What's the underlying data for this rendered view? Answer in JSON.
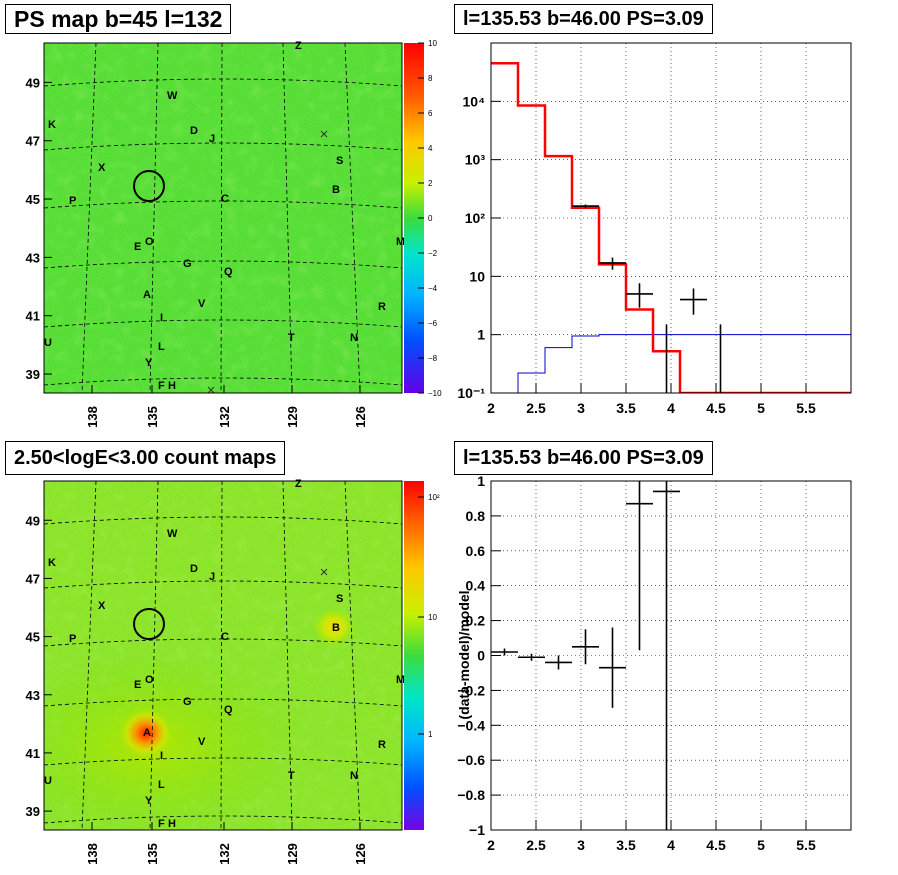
{
  "panels": {
    "ps_map_title": "PS map b=45 l=132",
    "count_map_title": "2.50<logE<3.00 count maps",
    "spectrum_title": "l=135.53 b=46.00 PS=3.09",
    "residual_title": "l=135.53 b=46.00 PS=3.09"
  },
  "colors": {
    "model_line": "#ff0000",
    "background_line": "#0000cc",
    "data_points": "#000000"
  },
  "chart_data": [
    {
      "type": "heatmap",
      "name": "ps_map",
      "title": "PS map b=45 l=132",
      "x_ticks": [
        "138",
        "135",
        "132",
        "129",
        "126"
      ],
      "y_ticks": [
        "49",
        "47",
        "45",
        "43",
        "41",
        "39"
      ],
      "colorbar_ticks": [
        "10",
        "8",
        "6",
        "4",
        "2",
        "0",
        "−2",
        "−4",
        "−6",
        "−8",
        "−10"
      ],
      "colorbar_range": [
        -10,
        10
      ],
      "source_labels": [
        "Z",
        "W",
        "K",
        "D",
        "J",
        "X",
        "S",
        "B",
        "P",
        "C",
        "E",
        "O",
        "M",
        "G",
        "Q",
        "A",
        "V",
        "R",
        "I",
        "T",
        "N",
        "U",
        "L",
        "Y",
        "F",
        "H"
      ],
      "markers": [
        "x",
        "x"
      ],
      "grid": true
    },
    {
      "type": "heatmap",
      "name": "count_map",
      "title": "2.50<logE<3.00 count maps",
      "x_ticks": [
        "138",
        "135",
        "132",
        "129",
        "126"
      ],
      "y_ticks": [
        "49",
        "47",
        "45",
        "43",
        "41",
        "39"
      ],
      "colorbar_ticks": [
        "10²",
        "10",
        "1"
      ],
      "colorbar_scale": "log",
      "source_labels": [
        "Z",
        "W",
        "K",
        "D",
        "J",
        "X",
        "S",
        "B",
        "P",
        "C",
        "E",
        "O",
        "M",
        "G",
        "Q",
        "A",
        "V",
        "R",
        "I",
        "T",
        "N",
        "U",
        "L",
        "Y",
        "F",
        "H"
      ],
      "markers": [
        "x"
      ],
      "grid": true
    },
    {
      "type": "line",
      "name": "spectrum",
      "title": "l=135.53 b=46.00 PS=3.09",
      "xlim": [
        2,
        6
      ],
      "ylim": [
        0.1,
        100000
      ],
      "yscale": "log",
      "x_ticks": [
        "2",
        "2.5",
        "3",
        "3.5",
        "4",
        "4.5",
        "5",
        "5.5"
      ],
      "y_ticks": [
        "10⁻¹",
        "1",
        "10",
        "10²",
        "10³",
        "10⁴"
      ],
      "grid": true,
      "model_steps": {
        "edges": [
          2.0,
          2.3,
          2.6,
          2.9,
          3.2,
          3.5,
          3.8,
          4.1,
          4.4,
          6.0
        ],
        "values": [
          45000,
          8500,
          1150,
          150,
          16,
          2.7,
          0.52,
          0.07,
          0.1
        ]
      },
      "background_steps": {
        "edges": [
          2.0,
          2.3,
          2.6,
          2.9,
          3.2,
          3.5,
          3.8,
          4.1,
          4.4,
          6.0
        ],
        "values": [
          0.08,
          0.22,
          0.6,
          0.95,
          1.0,
          1.0,
          1.0,
          1.0,
          1.0
        ]
      },
      "points": [
        {
          "x": 3.05,
          "y": 160,
          "xerr": 0.15,
          "ylo": 150,
          "yhi": 170
        },
        {
          "x": 3.35,
          "y": 17,
          "xerr": 0.15,
          "ylo": 13,
          "yhi": 21
        },
        {
          "x": 3.65,
          "y": 5,
          "xerr": 0.15,
          "ylo": 2.9,
          "yhi": 7.6
        },
        {
          "x": 3.95,
          "y": 0.1,
          "xerr": 0.0,
          "ylo": 0.1,
          "yhi": 1.5
        },
        {
          "x": 4.25,
          "y": 4,
          "xerr": 0.15,
          "ylo": 2.2,
          "yhi": 6.2
        },
        {
          "x": 4.55,
          "y": 0.1,
          "xerr": 0.0,
          "ylo": 0.1,
          "yhi": 1.5
        }
      ]
    },
    {
      "type": "scatter",
      "name": "residual",
      "title": "l=135.53 b=46.00 PS=3.09",
      "ylabel": "(data-model)/model",
      "xlim": [
        2,
        6
      ],
      "ylim": [
        -1,
        1
      ],
      "x_ticks": [
        "2",
        "2.5",
        "3",
        "3.5",
        "4",
        "4.5",
        "5",
        "5.5"
      ],
      "y_ticks": [
        "1",
        "0.8",
        "0.6",
        "0.4",
        "0.2",
        "0",
        "−0.2",
        "−0.4",
        "−0.6",
        "−0.8",
        "−1"
      ],
      "grid": true,
      "points": [
        {
          "x": 2.15,
          "y": 0.02,
          "xerr": 0.15,
          "ylo": 0.0,
          "yhi": 0.04
        },
        {
          "x": 2.45,
          "y": -0.01,
          "xerr": 0.15,
          "ylo": -0.03,
          "yhi": 0.01
        },
        {
          "x": 2.75,
          "y": -0.04,
          "xerr": 0.15,
          "ylo": -0.08,
          "yhi": 0.0
        },
        {
          "x": 3.05,
          "y": 0.05,
          "xerr": 0.15,
          "ylo": -0.05,
          "yhi": 0.15
        },
        {
          "x": 3.35,
          "y": -0.07,
          "xerr": 0.15,
          "ylo": -0.3,
          "yhi": 0.16
        },
        {
          "x": 3.65,
          "y": 0.87,
          "xerr": 0.15,
          "ylo": 0.03,
          "yhi": 1.0
        },
        {
          "x": 3.95,
          "y": 0.94,
          "xerr": 0.15,
          "ylo": -1.0,
          "yhi": 1.0
        }
      ]
    }
  ]
}
